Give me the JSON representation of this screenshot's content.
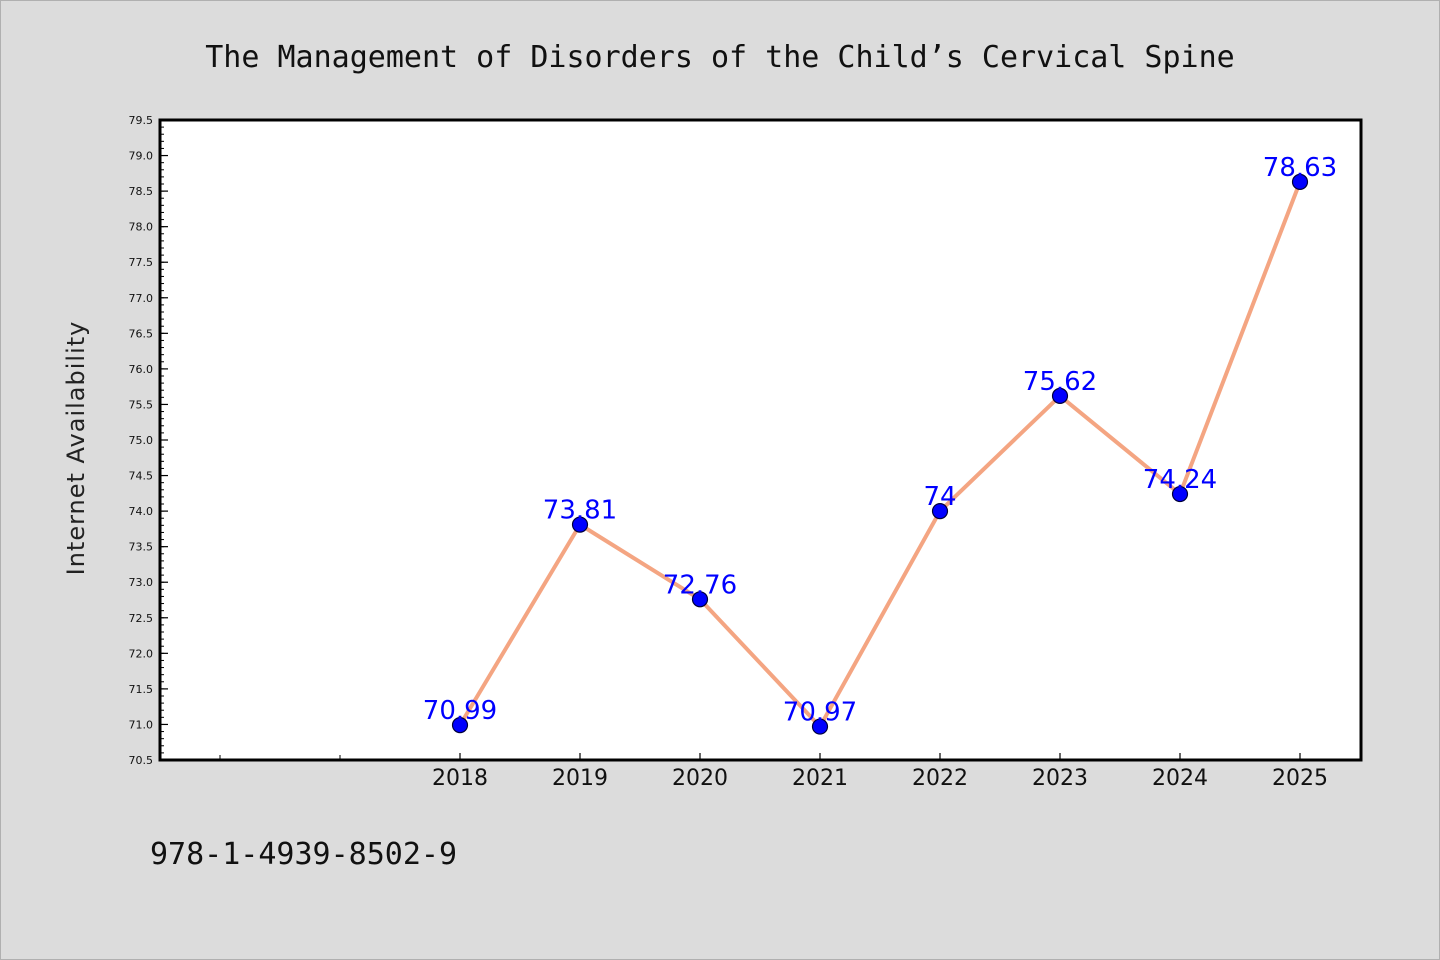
{
  "page": {
    "isbn": "978-1-4939-8502-9"
  },
  "colors": {
    "background": "#dcdcdc",
    "plot_background": "#ffffff",
    "line": "#f4a582",
    "marker": "#0000ff",
    "data_label": "#0000ff"
  },
  "chart_data": {
    "type": "line",
    "title": "The Management of Disorders of the Child’s Cervical Spine",
    "xlabel": "",
    "ylabel": "Internet Availability",
    "categories": [
      "2018",
      "2019",
      "2020",
      "2021",
      "2022",
      "2023",
      "2024",
      "2025"
    ],
    "series": [
      {
        "values": [
          70.99,
          73.81,
          72.76,
          70.97,
          74,
          75.62,
          74.24,
          78.63
        ]
      }
    ],
    "data_labels": [
      "70.99",
      "73.81",
      "72.76",
      "70.97",
      "74",
      "75.62",
      "74.24",
      "78.63"
    ],
    "ylim": [
      70.5,
      79.5
    ],
    "yticks": [
      "70.5",
      "71.0",
      "71.5",
      "72.0",
      "72.5",
      "73.0",
      "73.5",
      "74.0",
      "74.5",
      "75.0",
      "75.5",
      "76.0",
      "76.5",
      "77.0",
      "77.5",
      "78.0",
      "78.5",
      "79.0",
      "79.5"
    ],
    "grid": false,
    "legend": "none"
  }
}
